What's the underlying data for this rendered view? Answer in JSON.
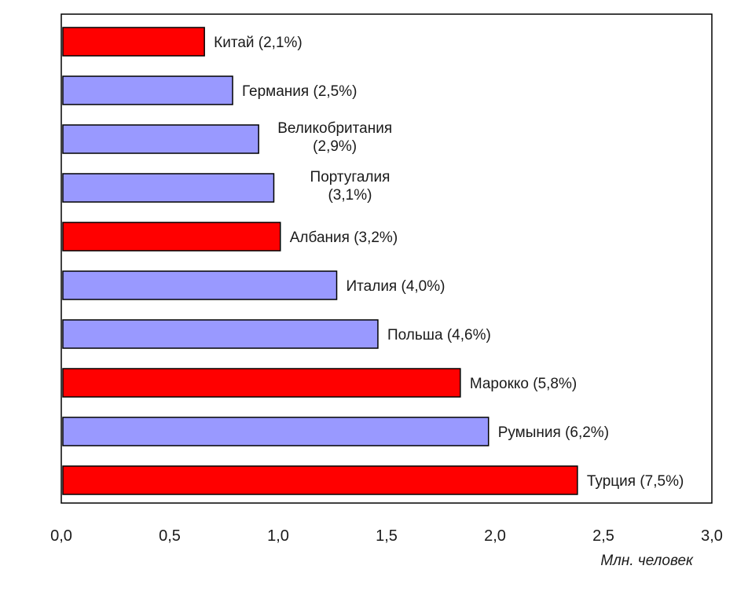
{
  "chart_data": {
    "type": "bar",
    "orientation": "horizontal",
    "xlabel": "Млн. человек",
    "xlim": [
      0,
      3
    ],
    "x_ticks": [
      "0,0",
      "0,5",
      "1,0",
      "1,5",
      "2,0",
      "2,5",
      "3,0"
    ],
    "x_tick_values": [
      0,
      0.5,
      1.0,
      1.5,
      2.0,
      2.5,
      3.0
    ],
    "grid": false,
    "legend": "none",
    "colors": {
      "highlight": "#ff0000",
      "normal": "#9999ff",
      "border": "#000000"
    },
    "bars": [
      {
        "label": [
          "Китай (2,1%)"
        ],
        "value": 0.66,
        "color": "#ff0000"
      },
      {
        "label": [
          "Германия (2,5%)"
        ],
        "value": 0.79,
        "color": "#9999ff"
      },
      {
        "label": [
          "Великобритания",
          "(2,9%)"
        ],
        "value": 0.91,
        "color": "#9999ff"
      },
      {
        "label": [
          "Португалия",
          "(3,1%)"
        ],
        "value": 0.98,
        "color": "#9999ff"
      },
      {
        "label": [
          "Албания (3,2%)"
        ],
        "value": 1.01,
        "color": "#ff0000"
      },
      {
        "label": [
          "Италия (4,0%)"
        ],
        "value": 1.27,
        "color": "#9999ff"
      },
      {
        "label": [
          "Польша (4,6%)"
        ],
        "value": 1.46,
        "color": "#9999ff"
      },
      {
        "label": [
          "Марокко (5,8%)"
        ],
        "value": 1.84,
        "color": "#ff0000"
      },
      {
        "label": [
          "Румыния (6,2%)"
        ],
        "value": 1.97,
        "color": "#9999ff"
      },
      {
        "label": [
          "Турция (7,5%)"
        ],
        "value": 2.38,
        "color": "#ff0000"
      }
    ]
  }
}
